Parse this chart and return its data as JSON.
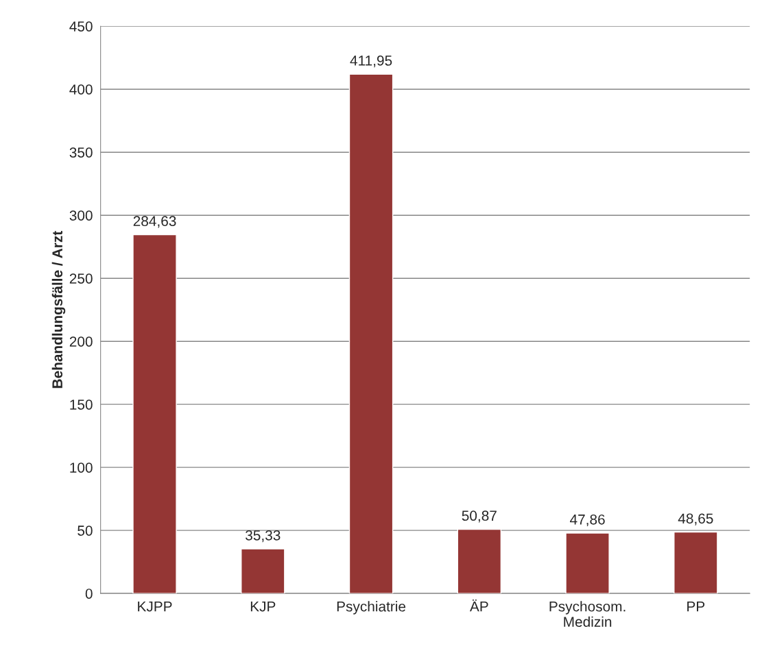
{
  "chart_data": {
    "type": "bar",
    "ylabel": "Behandlungsfälle / Arzt",
    "categories": [
      "KJPP",
      "KJP",
      "Psychiatrie",
      "ÄP",
      "Psychosom.\nMedizin",
      "PP"
    ],
    "values": [
      284.63,
      35.33,
      411.95,
      50.87,
      47.86,
      48.65
    ],
    "value_labels": [
      "284,63",
      "35,33",
      "411,95",
      "50,87",
      "47,86",
      "48,65"
    ],
    "color": "#943634",
    "ylim": [
      0,
      450
    ],
    "yticks": [
      0,
      50,
      100,
      150,
      200,
      250,
      300,
      350,
      400,
      450
    ],
    "grid": "y",
    "legend": false
  }
}
